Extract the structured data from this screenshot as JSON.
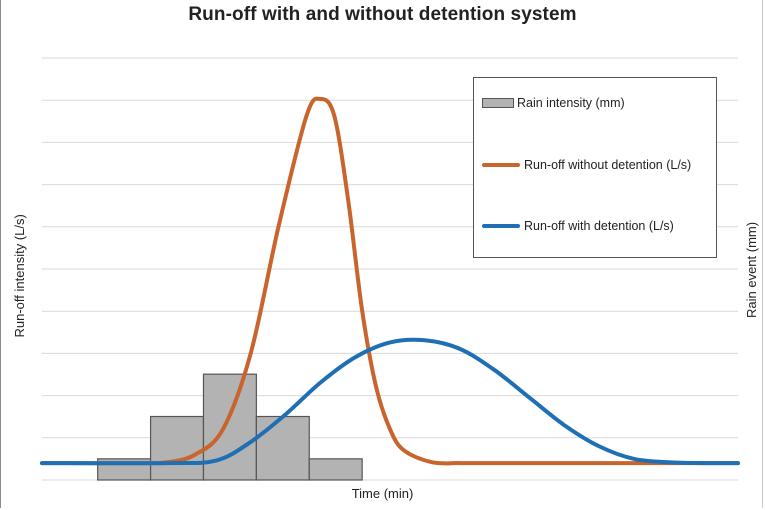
{
  "chart_data": {
    "type": "bar+line",
    "title": "Run-off with and without detention system",
    "xlabel": "Time (min)",
    "ylabel_left": "Run-off intensity (L/s)",
    "ylabel_right": "Rain event (mm)",
    "x_range": [
      0,
      100
    ],
    "y_range": [
      0,
      9
    ],
    "grid": "horizontal",
    "legend_position": "top-right",
    "bars": {
      "name": "Rain intensity (mm)",
      "color": "#b3b3b3",
      "edge_color": "#555555",
      "x_start": 8,
      "bar_width": 7.6,
      "values": [
        0.5,
        1.5,
        2.5,
        1.5,
        0.5
      ]
    },
    "series": [
      {
        "name": "Run-off without detention (L/s)",
        "color": "#c8642c",
        "x": [
          0,
          14,
          18,
          22,
          26,
          30,
          34,
          38,
          40,
          42,
          44,
          46,
          48,
          50,
          52,
          56,
          60,
          64,
          100
        ],
        "values": [
          0.4,
          0.4,
          0.42,
          0.6,
          1.2,
          3.0,
          6.0,
          8.6,
          9.0,
          8.6,
          6.6,
          4.0,
          2.2,
          1.2,
          0.7,
          0.42,
          0.4,
          0.4,
          0.4
        ]
      },
      {
        "name": "Run-off with detention (L/s)",
        "color": "#1f6fb4",
        "x": [
          0,
          18,
          25,
          30,
          35,
          40,
          45,
          50,
          55,
          60,
          65,
          70,
          75,
          80,
          85,
          90,
          95,
          100
        ],
        "values": [
          0.4,
          0.4,
          0.46,
          0.9,
          1.55,
          2.3,
          2.9,
          3.25,
          3.3,
          3.1,
          2.6,
          1.95,
          1.3,
          0.8,
          0.5,
          0.42,
          0.4,
          0.4
        ]
      }
    ]
  }
}
